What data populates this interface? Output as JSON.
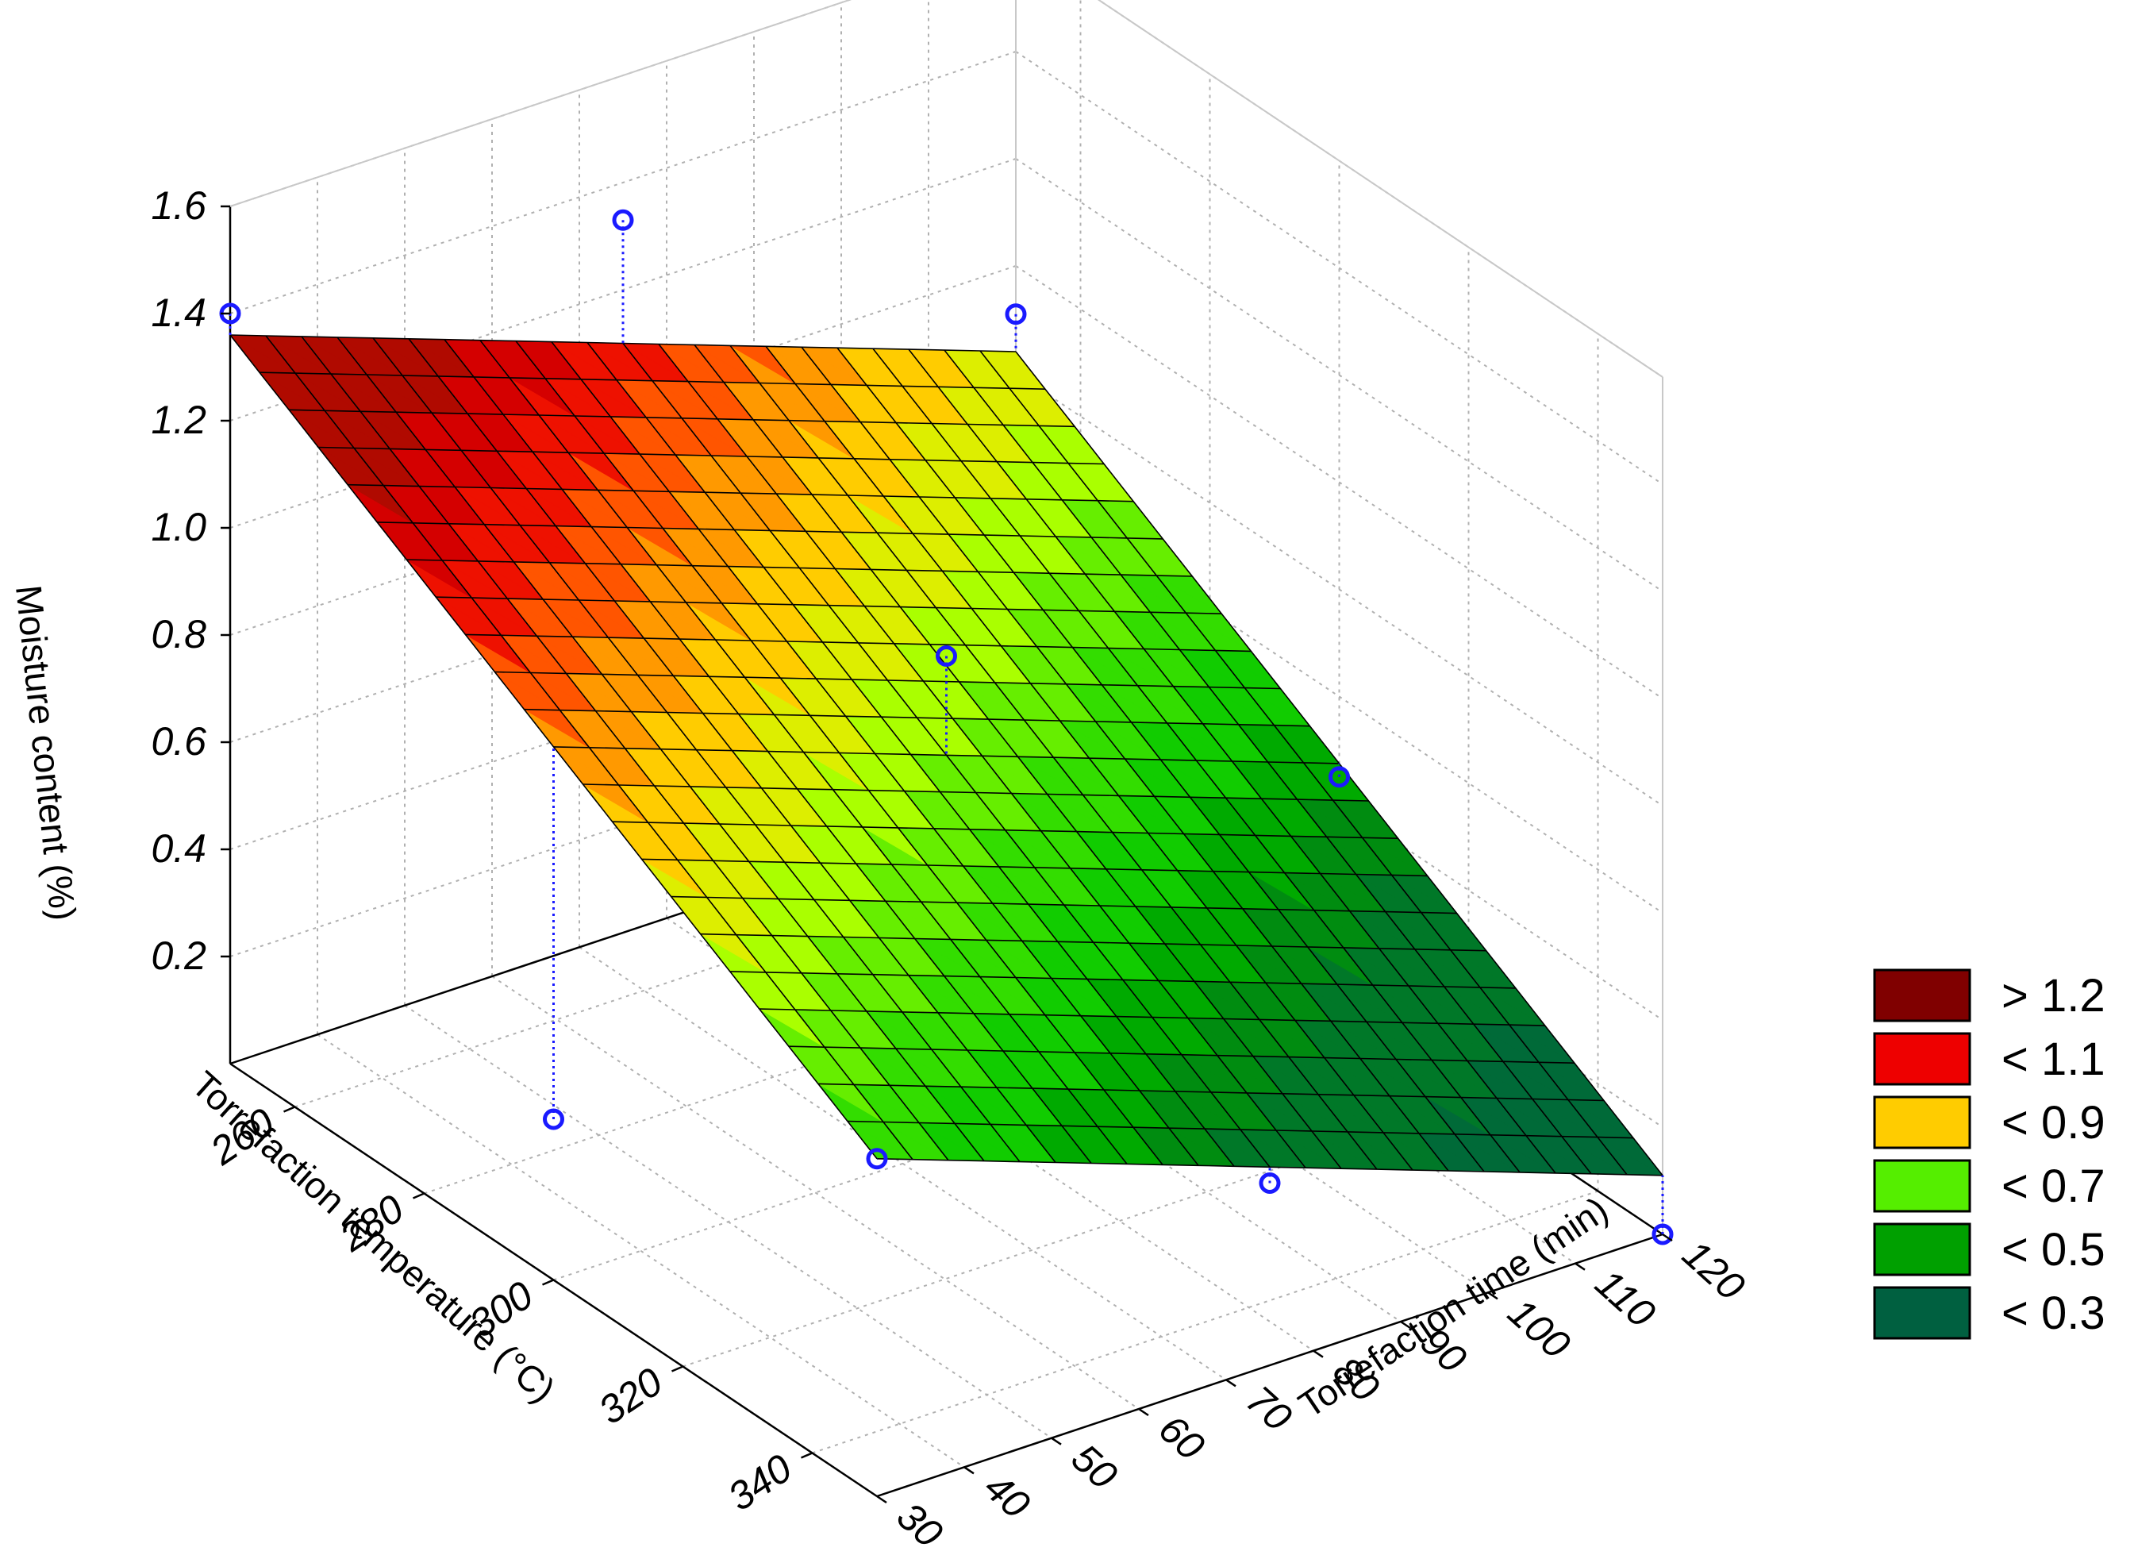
{
  "chart_data": {
    "type": "surface",
    "xlabel": "Torrefaction temperature (°C)",
    "ylabel": "Torrefaction time (min)",
    "zlabel": "Moisture content (%)",
    "x_ticks": [
      260,
      280,
      300,
      320,
      340
    ],
    "y_ticks": [
      30,
      40,
      50,
      60,
      70,
      80,
      90,
      100,
      110,
      120
    ],
    "z_ticks": [
      "0.2",
      "0.4",
      "0.6",
      "0.8",
      "1.0",
      "1.2",
      "1.4",
      "1.6"
    ],
    "xlim": [
      250,
      350
    ],
    "ylim": [
      30,
      120
    ],
    "zlim": [
      0,
      1.6
    ],
    "grid": true,
    "legend_position": "right",
    "surface_corners": [
      {
        "x": 250,
        "y": 30,
        "z": 1.36
      },
      {
        "x": 250,
        "y": 120,
        "z": 0.84
      },
      {
        "x": 350,
        "y": 30,
        "z": 0.63
      },
      {
        "x": 350,
        "y": 120,
        "z": 0.11
      }
    ],
    "observed_points": [
      {
        "x": 250,
        "y": 30,
        "z": 1.4
      },
      {
        "x": 250,
        "y": 75,
        "z": 1.33
      },
      {
        "x": 250,
        "y": 120,
        "z": 0.91
      },
      {
        "x": 300,
        "y": 30,
        "z": 0.3
      },
      {
        "x": 300,
        "y": 75,
        "z": 0.92
      },
      {
        "x": 300,
        "y": 120,
        "z": 0.45
      },
      {
        "x": 350,
        "y": 30,
        "z": 0.63
      },
      {
        "x": 350,
        "y": 75,
        "z": 0.34
      },
      {
        "x": 350,
        "y": 120,
        "z": 0.0
      }
    ],
    "legend": [
      {
        "label": "> 1.2",
        "color": "#800000"
      },
      {
        "label": "< 1.1",
        "color": "#ee0000"
      },
      {
        "label": "< 0.9",
        "color": "#ffcc00"
      },
      {
        "label": "< 0.7",
        "color": "#55ee00"
      },
      {
        "label": "< 0.5",
        "color": "#00a000"
      },
      {
        "label": "< 0.3",
        "color": "#006040"
      }
    ]
  }
}
